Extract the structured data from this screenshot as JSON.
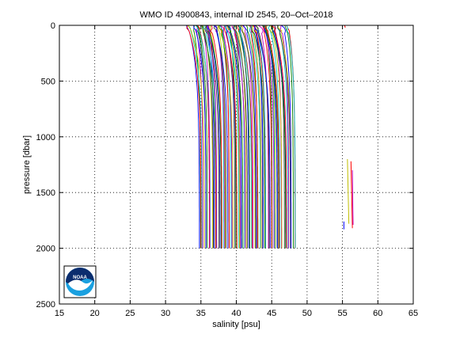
{
  "chart_data": {
    "type": "line",
    "title": "WMO ID 4900843, internal ID 2545, 20–Oct–2018",
    "xlabel": "salinity [psu]",
    "ylabel": "pressure [dbar]",
    "xlim": [
      15,
      65
    ],
    "ylim": [
      0,
      2500
    ],
    "y_reversed": true,
    "grid": true,
    "grid_style": "dotted",
    "x_ticks": [
      15,
      20,
      25,
      30,
      35,
      40,
      45,
      50,
      55,
      60,
      65
    ],
    "y_ticks": [
      0,
      500,
      1000,
      1500,
      2000,
      2500
    ],
    "profile_family": {
      "description_of_data": "stacked salinity profiles offset along x",
      "count": 95,
      "first_profile_x_deep": 34.8,
      "last_profile_x_deep": 48.3,
      "surface_x_shift": -1.6,
      "max_pressure": 2000,
      "colors": [
        "#0000ff",
        "#008000",
        "#ff0000",
        "#00bfbf",
        "#bf00bf",
        "#bfbf00",
        "#404040"
      ]
    },
    "outlier_segments": [
      {
        "x": [
          55.2,
          55.2
        ],
        "y": [
          1760,
          1830
        ],
        "color": "#0000ff"
      },
      {
        "x": [
          55.7,
          55.9
        ],
        "y": [
          1200,
          1780
        ],
        "color": "#bfbf00"
      },
      {
        "x": [
          56.2,
          56.4
        ],
        "y": [
          1220,
          1820
        ],
        "color": "#ff0000"
      },
      {
        "x": [
          56.4,
          56.5
        ],
        "y": [
          1300,
          1790
        ],
        "color": "#bf00bf"
      },
      {
        "x": [
          55.3,
          55.4
        ],
        "y": [
          0,
          20
        ],
        "color": "#ff0000"
      }
    ]
  },
  "logo": {
    "name": "noaa-logo",
    "text": "NOAA",
    "colors": {
      "top": "#0b2d6e",
      "bottom": "#1aa0e0",
      "bird": "#ffffff"
    }
  }
}
